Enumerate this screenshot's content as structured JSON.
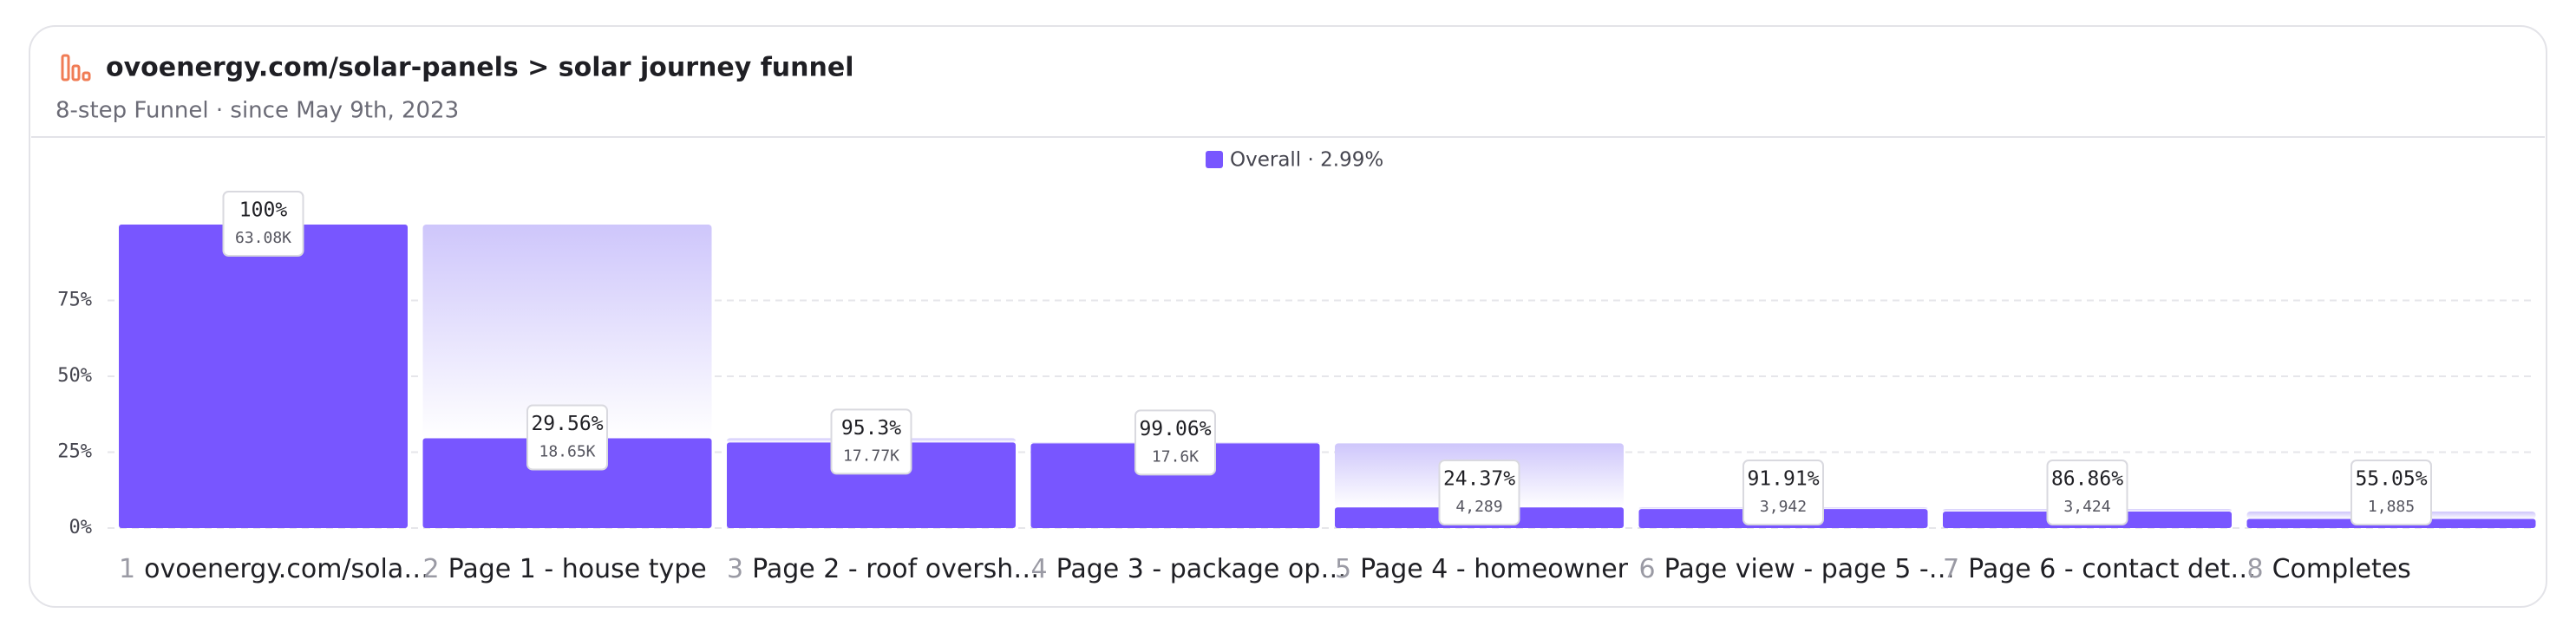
{
  "chart_data": {
    "type": "funnel",
    "title": "ovoenergy.com/solar-panels > solar journey funnel",
    "subtitle": "8-step Funnel · since May 9th, 2023",
    "legend": "Overall · 2.99%",
    "color": "#7856ff",
    "step_numbers": [
      "1",
      "2",
      "3",
      "4",
      "5",
      "6",
      "7",
      "8"
    ],
    "categories": [
      "ovoenergy.com/sola…",
      "Page 1 - house type",
      "Page 2 - roof oversh…",
      "Page 3 - package op…",
      "Page 4 - homeowner",
      "Page view - page 5 -…",
      "Page 6 - contact det…",
      "Completes"
    ],
    "values": [
      100,
      29.56,
      28.17,
      27.9,
      6.8,
      6.25,
      5.43,
      2.99
    ],
    "conversion": [
      100,
      29.56,
      95.3,
      99.06,
      24.37,
      91.91,
      86.86,
      55.05
    ],
    "conversion_labels": [
      "100%",
      "29.56%",
      "95.3%",
      "99.06%",
      "24.37%",
      "91.91%",
      "86.86%",
      "55.05%"
    ],
    "counts": [
      63080,
      18650,
      17770,
      17600,
      4289,
      3942,
      3424,
      1885
    ],
    "count_labels": [
      "63.08K",
      "18.65K",
      "17.77K",
      "17.6K",
      "4,289",
      "3,942",
      "3,424",
      "1,885"
    ],
    "ylim": [
      0,
      100
    ],
    "yticks": [
      {
        "value": 0,
        "label": "0%"
      },
      {
        "value": 25,
        "label": "25%"
      },
      {
        "value": 50,
        "label": "50%"
      },
      {
        "value": 75,
        "label": "75%"
      }
    ],
    "grid": true
  }
}
